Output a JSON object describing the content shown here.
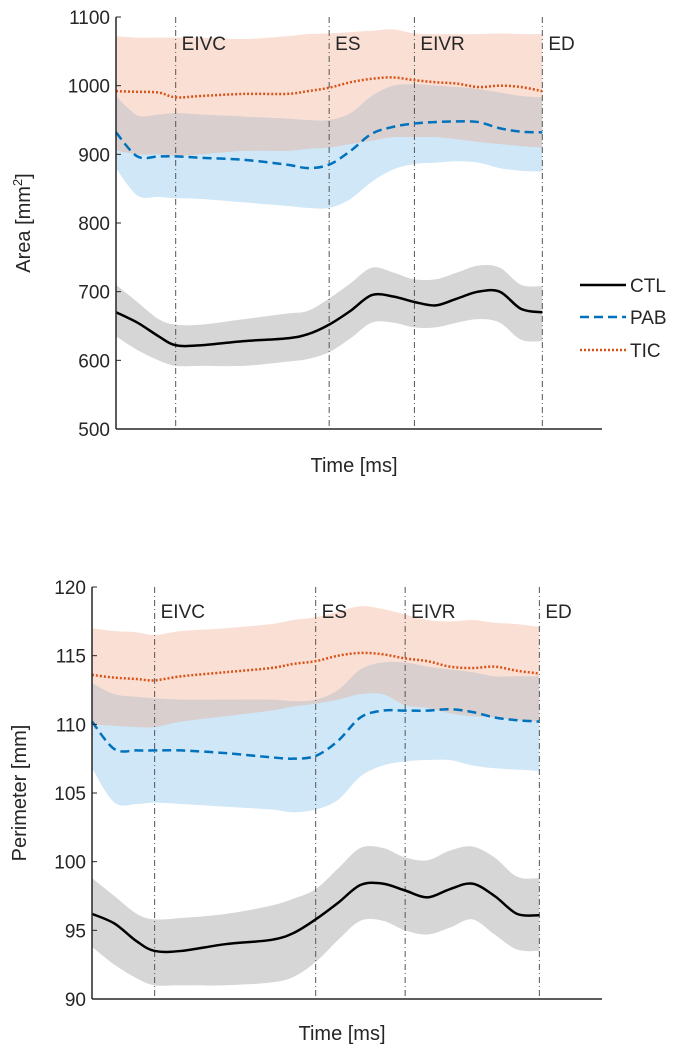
{
  "legend": {
    "position": "right",
    "entries": [
      "CTL",
      "PAB",
      "TIC"
    ]
  },
  "colors": {
    "CTL": "#000000",
    "PAB": "#0072BD",
    "TIC": "#D95319",
    "CTL_band": "#808080",
    "PAB_band": "#6BB3E6",
    "TIC_band": "#EE9A7A"
  },
  "chart_data": [
    {
      "type": "line",
      "title": "",
      "xlabel": "Time [ms]",
      "ylabel": "Area [mm²]",
      "ylabel_main": "Area [mm",
      "ylabel_sup": "2",
      "ylabel_end": "]",
      "xlim": [
        0,
        114
      ],
      "ylim": [
        500,
        1100
      ],
      "yticks": [
        500,
        600,
        700,
        800,
        900,
        1000,
        1100
      ],
      "grid": false,
      "events": [
        {
          "label": "EIVC",
          "x": 14
        },
        {
          "label": "ES",
          "x": 50
        },
        {
          "label": "EIVR",
          "x": 70
        },
        {
          "label": "ED",
          "x": 100
        }
      ],
      "x": [
        0,
        5,
        10,
        14,
        20,
        30,
        40,
        45,
        50,
        55,
        60,
        65,
        70,
        75,
        80,
        85,
        90,
        95,
        100
      ],
      "series": [
        {
          "name": "CTL",
          "style": "solid",
          "values": [
            670,
            655,
            635,
            622,
            622,
            628,
            632,
            638,
            652,
            672,
            695,
            693,
            685,
            680,
            690,
            700,
            700,
            675,
            670
          ],
          "upper": [
            710,
            685,
            660,
            652,
            652,
            660,
            668,
            672,
            690,
            712,
            735,
            728,
            718,
            718,
            728,
            738,
            735,
            710,
            708
          ],
          "lower": [
            635,
            615,
            600,
            592,
            592,
            592,
            598,
            602,
            612,
            632,
            655,
            655,
            648,
            648,
            655,
            660,
            655,
            630,
            628
          ]
        },
        {
          "name": "PAB",
          "style": "dashed",
          "values": [
            932,
            897,
            897,
            897,
            895,
            892,
            885,
            880,
            885,
            905,
            930,
            940,
            945,
            947,
            948,
            947,
            938,
            933,
            932
          ],
          "upper": [
            985,
            957,
            958,
            960,
            958,
            955,
            952,
            950,
            950,
            960,
            985,
            1000,
            1002,
            1000,
            998,
            995,
            990,
            985,
            983
          ],
          "lower": [
            880,
            840,
            838,
            836,
            835,
            830,
            825,
            822,
            822,
            835,
            860,
            878,
            886,
            888,
            890,
            888,
            880,
            876,
            875
          ]
        },
        {
          "name": "TIC",
          "style": "dotted",
          "values": [
            992,
            991,
            990,
            983,
            985,
            988,
            988,
            992,
            997,
            1005,
            1010,
            1012,
            1008,
            1005,
            1003,
            998,
            1000,
            998,
            992
          ],
          "upper": [
            1072,
            1070,
            1070,
            1070,
            1070,
            1068,
            1072,
            1075,
            1076,
            1078,
            1080,
            1082,
            1076,
            1075,
            1075,
            1075,
            1076,
            1075,
            1075
          ],
          "lower": [
            906,
            900,
            900,
            898,
            900,
            905,
            905,
            908,
            910,
            915,
            920,
            925,
            925,
            925,
            922,
            918,
            915,
            912,
            910
          ]
        }
      ]
    },
    {
      "type": "line",
      "title": "",
      "xlabel": "Time [ms]",
      "ylabel": "Perimeter [mm]",
      "xlim": [
        0,
        114
      ],
      "ylim": [
        90,
        120
      ],
      "yticks": [
        90,
        95,
        100,
        105,
        110,
        115,
        120
      ],
      "grid": false,
      "events": [
        {
          "label": "EIVC",
          "x": 14
        },
        {
          "label": "ES",
          "x": 50
        },
        {
          "label": "EIVR",
          "x": 70
        },
        {
          "label": "ED",
          "x": 100
        }
      ],
      "x": [
        0,
        5,
        10,
        14,
        20,
        30,
        40,
        45,
        50,
        55,
        60,
        65,
        70,
        75,
        80,
        85,
        90,
        95,
        100
      ],
      "series": [
        {
          "name": "CTL",
          "style": "solid",
          "values": [
            96.2,
            95.5,
            94.2,
            93.5,
            93.5,
            94,
            94.3,
            94.8,
            95.8,
            97,
            98.3,
            98.4,
            97.9,
            97.4,
            98,
            98.4,
            97.5,
            96.2,
            96.1
          ],
          "upper": [
            98.8,
            97.5,
            96.2,
            95.8,
            95.9,
            96.2,
            96.8,
            97.3,
            98,
            99.5,
            101,
            101,
            100.3,
            100.1,
            100.8,
            101.1,
            100.3,
            98.9,
            98.8
          ],
          "lower": [
            93.8,
            92.5,
            91.5,
            91,
            91,
            91,
            91.2,
            91.6,
            92.7,
            94.3,
            95.7,
            95.7,
            95,
            94.7,
            95.2,
            95.8,
            94.7,
            93.6,
            93.5
          ]
        },
        {
          "name": "PAB",
          "style": "dashed",
          "values": [
            110.2,
            108.2,
            108.1,
            108.1,
            108.1,
            107.9,
            107.6,
            107.5,
            107.7,
            108.8,
            110.5,
            111,
            111,
            111,
            111.1,
            110.9,
            110.5,
            110.3,
            110.2
          ],
          "upper": [
            113,
            112.2,
            112,
            111.9,
            111.8,
            111.8,
            111.8,
            111.7,
            111.8,
            112.5,
            114,
            114.5,
            114.5,
            114.2,
            114,
            113.8,
            113.5,
            113.5,
            113.5
          ],
          "lower": [
            106.8,
            104.3,
            104.2,
            104.3,
            104.2,
            104,
            103.8,
            103.6,
            103.8,
            104.5,
            106.2,
            107,
            107.3,
            107.4,
            107.4,
            107,
            106.8,
            106.7,
            106.6
          ]
        },
        {
          "name": "TIC",
          "style": "dotted",
          "values": [
            113.6,
            113.4,
            113.3,
            113.2,
            113.5,
            113.8,
            114.1,
            114.4,
            114.6,
            115,
            115.2,
            115.1,
            114.8,
            114.6,
            114.2,
            114.1,
            114.2,
            113.9,
            113.7
          ],
          "upper": [
            117,
            116.8,
            116.7,
            116.5,
            116.8,
            117,
            117.3,
            117.6,
            117.8,
            118.2,
            118.6,
            118.4,
            118,
            117.6,
            117.5,
            117.6,
            117.4,
            117.3,
            117.1
          ],
          "lower": [
            110,
            109.9,
            109.8,
            109.8,
            110.2,
            110.6,
            111,
            111.3,
            111.5,
            111.8,
            112.2,
            112.2,
            111.4,
            111.2,
            110.8,
            110.6,
            110.5,
            110.3,
            110.2
          ]
        }
      ]
    }
  ]
}
